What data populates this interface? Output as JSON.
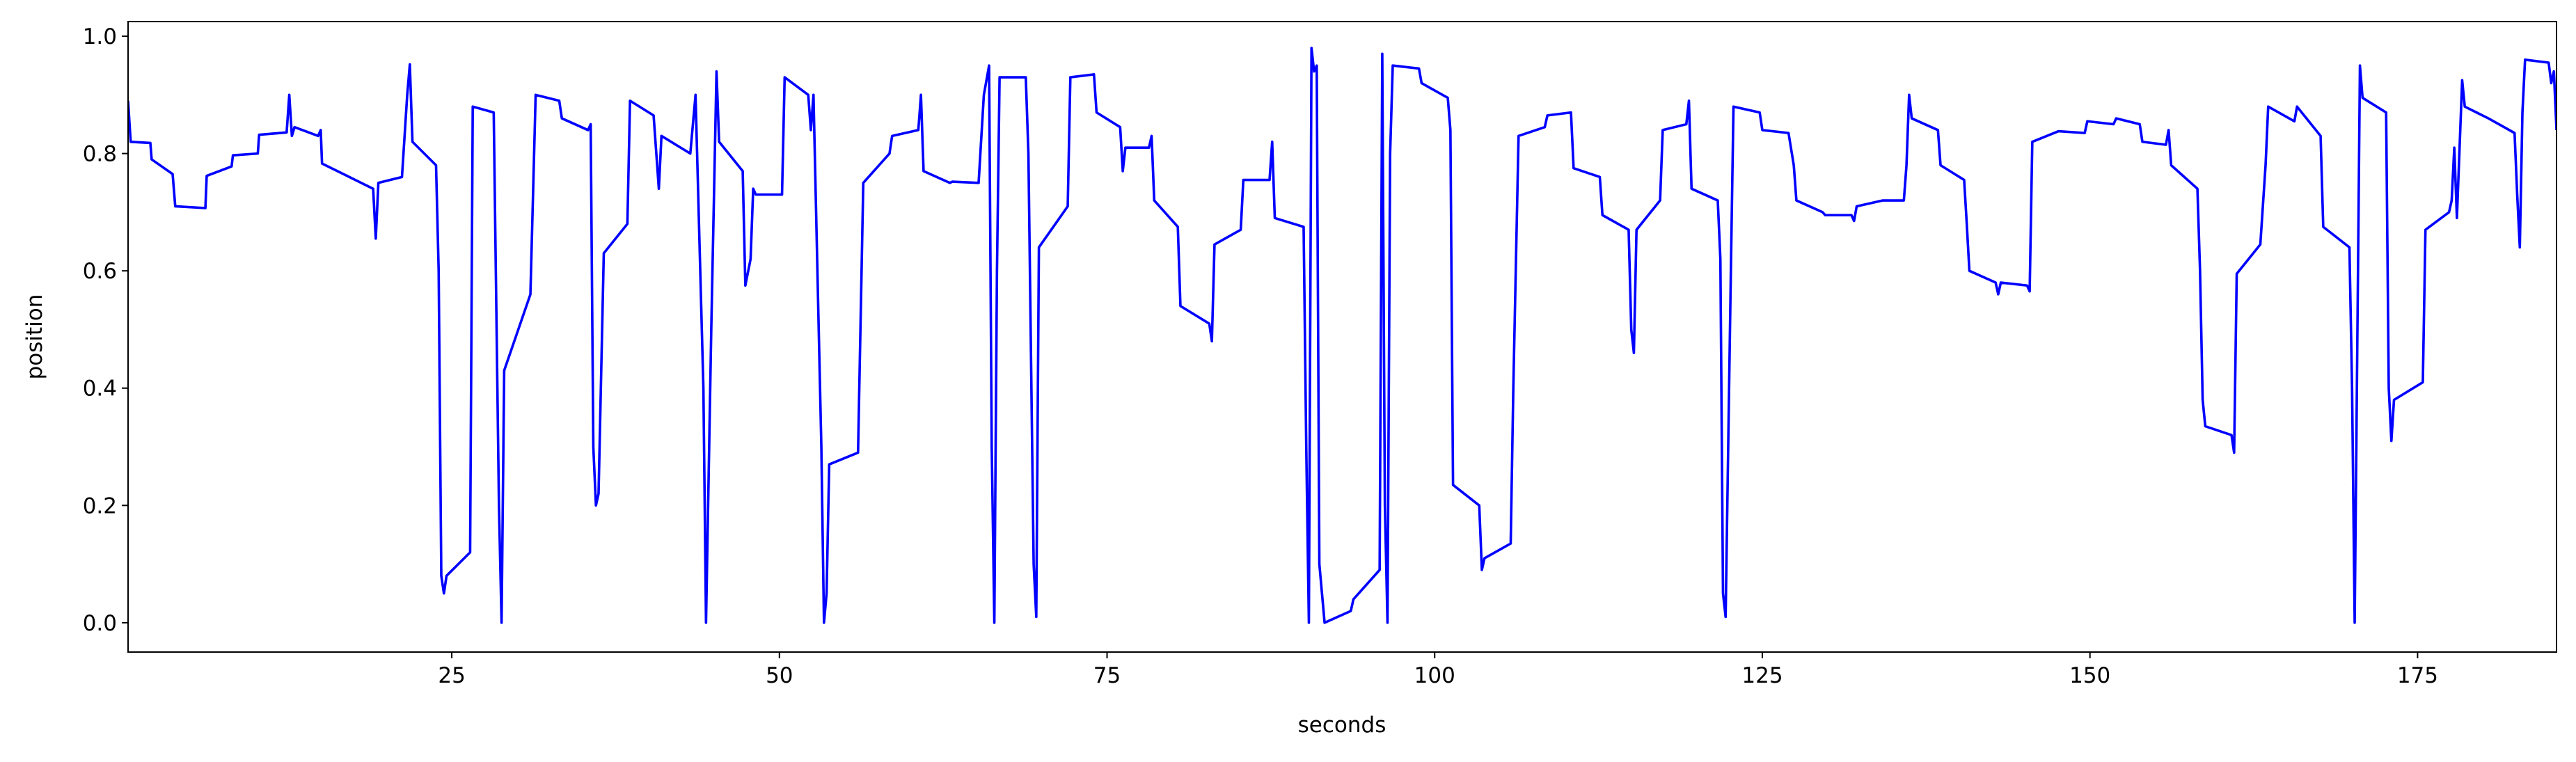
{
  "chart_data": {
    "type": "line",
    "xlabel": "seconds",
    "ylabel": "position",
    "color": "#0000ff",
    "xlim": [
      0.3,
      185.6
    ],
    "ylim": [
      -0.05,
      1.025
    ],
    "xticks": [
      25,
      50,
      75,
      100,
      125,
      150,
      175
    ],
    "yticks": [
      {
        "value": 0,
        "label": "0.0"
      },
      0.2,
      0.4,
      0.6,
      0.8,
      {
        "value": 1,
        "label": "1.0"
      }
    ],
    "grid": false,
    "x": [
      0.3,
      0.5,
      2.0,
      2.1,
      3.7,
      3.9,
      6.2,
      6.3,
      8.2,
      8.3,
      10.2,
      10.3,
      12.4,
      12.6,
      12.8,
      13.0,
      14.8,
      15.0,
      15.1,
      19.0,
      19.2,
      19.4,
      21.2,
      21.6,
      21.8,
      22.0,
      23.8,
      24.0,
      24.2,
      24.4,
      24.6,
      26.4,
      26.6,
      28.2,
      28.6,
      28.8,
      29.0,
      31.0,
      31.4,
      33.2,
      33.4,
      35.4,
      35.6,
      35.8,
      36.0,
      36.2,
      36.6,
      38.4,
      38.6,
      40.4,
      40.8,
      41.0,
      43.2,
      43.6,
      44.2,
      44.4,
      44.8,
      45.2,
      45.4,
      47.2,
      47.4,
      47.8,
      48.0,
      48.2,
      50.2,
      50.4,
      52.2,
      52.4,
      52.6,
      53.2,
      53.4,
      53.6,
      53.8,
      56.0,
      56.4,
      58.4,
      58.6,
      60.6,
      60.8,
      61.0,
      63.0,
      63.2,
      65.2,
      65.6,
      66.0,
      66.2,
      66.4,
      66.6,
      66.8,
      68.8,
      69.0,
      69.4,
      69.6,
      69.8,
      72.0,
      72.2,
      74.0,
      74.2,
      76.0,
      76.2,
      76.4,
      78.2,
      78.4,
      78.6,
      80.4,
      80.6,
      82.8,
      83.0,
      83.2,
      85.2,
      85.4,
      87.4,
      87.6,
      87.8,
      90.0,
      90.2,
      90.4,
      90.6,
      90.8,
      91.0,
      91.2,
      91.6,
      93.6,
      93.8,
      95.8,
      96.0,
      96.2,
      96.4,
      96.6,
      96.8,
      98.8,
      99.0,
      101.0,
      101.2,
      101.4,
      103.4,
      103.6,
      103.8,
      105.8,
      106.0,
      106.4,
      108.4,
      108.6,
      110.4,
      110.6,
      112.6,
      112.8,
      114.8,
      115.0,
      115.2,
      115.4,
      117.2,
      117.4,
      119.2,
      119.4,
      119.6,
      121.6,
      121.8,
      122.0,
      122.2,
      122.6,
      122.8,
      124.8,
      125.0,
      127.0,
      127.4,
      127.6,
      129.6,
      129.8,
      131.8,
      132.0,
      132.2,
      134.2,
      135.8,
      136.0,
      136.2,
      136.4,
      138.4,
      138.6,
      140.4,
      140.6,
      140.8,
      142.8,
      143.0,
      143.2,
      145.2,
      145.4,
      145.6,
      147.6,
      149.6,
      149.8,
      151.8,
      152.0,
      153.8,
      154.0,
      155.8,
      156.0,
      156.2,
      158.2,
      158.4,
      158.6,
      158.8,
      160.8,
      161.0,
      161.2,
      163.0,
      163.4,
      163.6,
      165.6,
      165.8,
      167.6,
      167.8,
      169.8,
      170.0,
      170.2,
      170.6,
      170.8,
      172.6,
      172.8,
      173.0,
      173.2,
      175.4,
      175.6,
      177.4,
      177.6,
      177.8,
      178.0,
      178.4,
      178.6,
      180.4,
      182.4,
      182.6,
      182.8,
      183.0,
      183.2,
      185.0,
      185.2,
      185.4,
      185.6
    ],
    "values": [
      0.89,
      0.82,
      0.818,
      0.79,
      0.765,
      0.71,
      0.707,
      0.762,
      0.778,
      0.797,
      0.8,
      0.832,
      0.836,
      0.9,
      0.83,
      0.845,
      0.83,
      0.84,
      0.783,
      0.74,
      0.655,
      0.75,
      0.76,
      0.9,
      0.952,
      0.82,
      0.78,
      0.6,
      0.08,
      0.05,
      0.08,
      0.12,
      0.88,
      0.87,
      0.2,
      0.0,
      0.43,
      0.56,
      0.9,
      0.89,
      0.86,
      0.84,
      0.85,
      0.3,
      0.2,
      0.22,
      0.63,
      0.68,
      0.89,
      0.865,
      0.74,
      0.83,
      0.8,
      0.9,
      0.4,
      0.0,
      0.5,
      0.94,
      0.82,
      0.77,
      0.575,
      0.62,
      0.74,
      0.73,
      0.73,
      0.93,
      0.9,
      0.84,
      0.9,
      0.3,
      0.0,
      0.05,
      0.27,
      0.29,
      0.75,
      0.8,
      0.83,
      0.84,
      0.9,
      0.77,
      0.75,
      0.752,
      0.75,
      0.9,
      0.95,
      0.3,
      0.0,
      0.6,
      0.93,
      0.93,
      0.8,
      0.1,
      0.01,
      0.64,
      0.71,
      0.93,
      0.935,
      0.87,
      0.845,
      0.77,
      0.81,
      0.81,
      0.83,
      0.72,
      0.675,
      0.54,
      0.51,
      0.48,
      0.645,
      0.67,
      0.755,
      0.755,
      0.82,
      0.69,
      0.675,
      0.3,
      0.0,
      0.98,
      0.94,
      0.95,
      0.1,
      0.0,
      0.02,
      0.04,
      0.09,
      0.97,
      0.2,
      0.0,
      0.8,
      0.95,
      0.945,
      0.92,
      0.895,
      0.84,
      0.235,
      0.2,
      0.09,
      0.11,
      0.135,
      0.4,
      0.83,
      0.845,
      0.865,
      0.87,
      0.775,
      0.76,
      0.695,
      0.67,
      0.5,
      0.46,
      0.67,
      0.72,
      0.84,
      0.85,
      0.89,
      0.74,
      0.72,
      0.62,
      0.05,
      0.01,
      0.6,
      0.88,
      0.87,
      0.84,
      0.835,
      0.78,
      0.72,
      0.7,
      0.695,
      0.695,
      0.685,
      0.71,
      0.72,
      0.72,
      0.78,
      0.9,
      0.86,
      0.84,
      0.78,
      0.755,
      0.68,
      0.6,
      0.58,
      0.56,
      0.58,
      0.575,
      0.565,
      0.82,
      0.838,
      0.835,
      0.855,
      0.85,
      0.86,
      0.85,
      0.82,
      0.815,
      0.84,
      0.78,
      0.74,
      0.6,
      0.38,
      0.335,
      0.32,
      0.29,
      0.595,
      0.645,
      0.78,
      0.88,
      0.855,
      0.88,
      0.83,
      0.675,
      0.64,
      0.4,
      0.0,
      0.95,
      0.895,
      0.87,
      0.4,
      0.31,
      0.38,
      0.41,
      0.67,
      0.7,
      0.72,
      0.81,
      0.69,
      0.925,
      0.88,
      0.86,
      0.835,
      0.73,
      0.64,
      0.87,
      0.96,
      0.955,
      0.92,
      0.94,
      0.84
    ]
  }
}
